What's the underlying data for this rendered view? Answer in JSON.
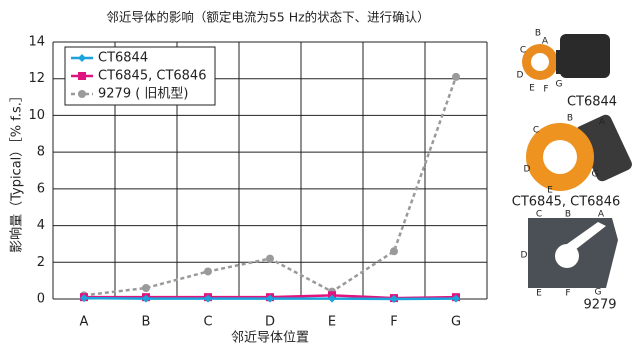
{
  "chart_data": {
    "type": "line",
    "title": "邻近导体的影响（额定电流为55 Hz的状态下、进行确认）",
    "x_label": "邻近导体位置",
    "y_label": "影响量（Typical）［% f.s.］",
    "categories": [
      "A",
      "B",
      "C",
      "D",
      "E",
      "F",
      "G"
    ],
    "series": [
      {
        "name": "CT6844",
        "color": "#1ba3dc",
        "marker": "diamond",
        "dashed": false,
        "values": [
          0.05,
          0.02,
          0.02,
          0.02,
          0.02,
          0.0,
          0.02
        ]
      },
      {
        "name": "CT6845, CT6846",
        "color": "#e0147f",
        "marker": "square",
        "dashed": false,
        "values": [
          0.1,
          0.1,
          0.1,
          0.1,
          0.2,
          0.05,
          0.1
        ]
      },
      {
        "name": "9279 ( 旧机型)",
        "color": "#9a9a9a",
        "marker": "circle",
        "dashed": true,
        "values": [
          0.2,
          0.6,
          1.5,
          2.2,
          0.4,
          2.6,
          12.1
        ]
      }
    ],
    "ylim": [
      0,
      14
    ],
    "yticks": [
      0,
      2,
      4,
      6,
      8,
      10,
      12,
      14
    ],
    "grid": true,
    "legend": "upper left"
  },
  "products": [
    {
      "caption": "CT6844",
      "letters": [
        "A",
        "B",
        "C",
        "D",
        "E",
        "F",
        "G"
      ]
    },
    {
      "caption": "CT6845, CT6846",
      "letters": [
        "B",
        "A",
        "C",
        "D",
        "E",
        "G"
      ]
    },
    {
      "caption": "9279",
      "letters": [
        "C",
        "B",
        "A",
        "D",
        "E",
        "F",
        "G"
      ]
    }
  ]
}
